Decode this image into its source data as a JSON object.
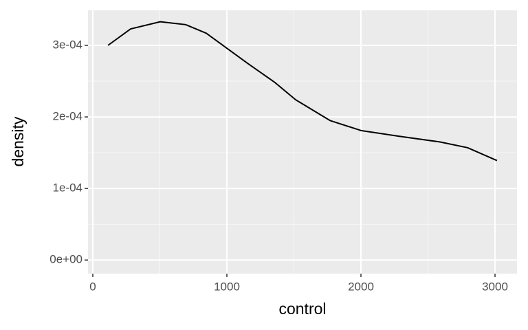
{
  "chart_data": {
    "type": "line",
    "x_label": "control",
    "y_label": "density",
    "x": [
      113,
      282,
      503,
      692,
      846,
      1000,
      1154,
      1359,
      1513,
      1769,
      2000,
      2282,
      2590,
      2795,
      3015
    ],
    "series": [
      {
        "name": "density",
        "color": "#000000",
        "values": [
          0.0003,
          0.000323,
          0.000333,
          0.000329,
          0.000317,
          0.000296,
          0.000275,
          0.000248,
          0.000224,
          0.000195,
          0.000181,
          0.000173,
          0.000165,
          0.000157,
          0.000139
        ]
      }
    ],
    "xlim": [
      -36,
      3164
    ],
    "ylim": [
      -1.9e-05,
      0.000349
    ],
    "xticks": [
      0,
      1000,
      2000,
      3000
    ],
    "yticks": [
      {
        "value": 0,
        "label": "0e+00"
      },
      {
        "value": 0.0001,
        "label": "1e-04"
      },
      {
        "value": 0.0002,
        "label": "2e-04"
      },
      {
        "value": 0.0003,
        "label": "3e-04"
      }
    ],
    "grid": true,
    "minor_grid": true
  }
}
